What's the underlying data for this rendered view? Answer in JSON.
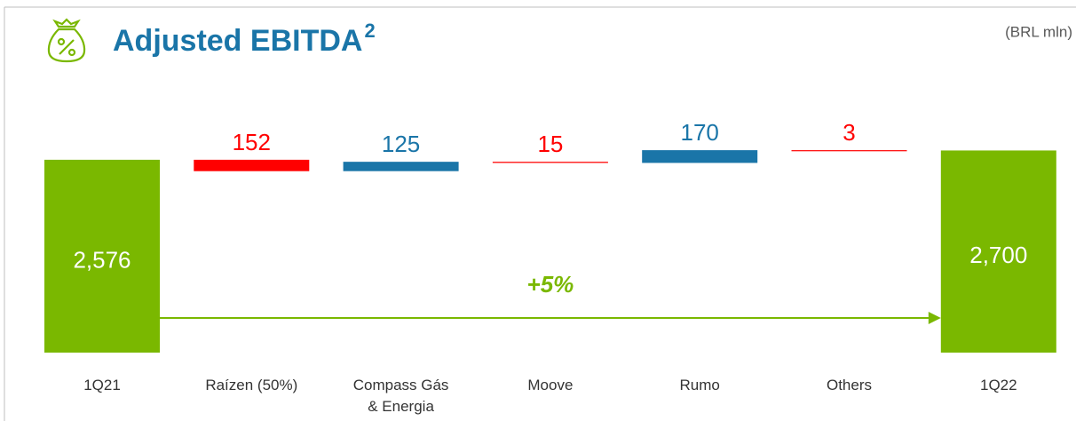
{
  "chart_data": {
    "type": "waterfall",
    "title": "Adjusted EBITDA",
    "title_superscript": "2",
    "unit_label": "(BRL mln)",
    "categories": [
      "1Q21",
      "Raízen (50%)",
      "Compass Gás\n& Energia",
      "Moove",
      "Rumo",
      "Others",
      "1Q22"
    ],
    "values": [
      2576,
      -152,
      125,
      -15,
      170,
      -3,
      2700
    ],
    "value_labels": [
      "2,576",
      "152",
      "125",
      "15",
      "170",
      "3",
      "2,700"
    ],
    "kinds": [
      "total",
      "delta",
      "delta",
      "delta",
      "delta",
      "delta",
      "total"
    ],
    "total_color": "#7ab800",
    "increase_color": "#1a75a8",
    "decrease_color": "#ff0000",
    "annotation": "+5%",
    "annotation_color": "#7ab800",
    "ylim": [
      0,
      2800
    ]
  }
}
